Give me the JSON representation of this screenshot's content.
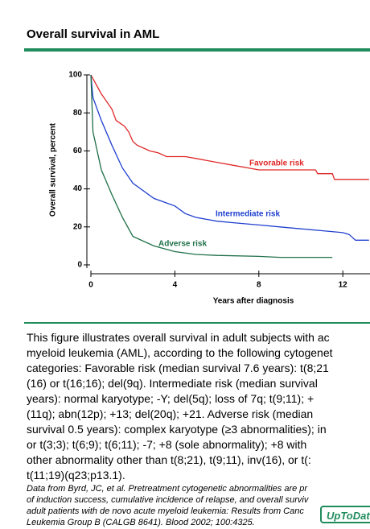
{
  "header": {
    "title": "Overall survival in AML"
  },
  "chart_data": {
    "type": "line",
    "xlabel": "Years after diagnosis",
    "ylabel": "Overall survival, percent",
    "xlim": [
      0,
      13.25
    ],
    "ylim": [
      0,
      100
    ],
    "xticks": [
      0,
      4,
      8,
      12
    ],
    "yticks": [
      0,
      20,
      40,
      60,
      80,
      100
    ],
    "series": [
      {
        "name": "Favorable risk",
        "color": "#e02828",
        "x": [
          0,
          0.2,
          0.5,
          1,
          1.2,
          1.6,
          1.8,
          2,
          2.2,
          2.8,
          3.2,
          3.6,
          4.5,
          5,
          6,
          7,
          7.5,
          8,
          9,
          10,
          10.7,
          10.8,
          11.5,
          11.6,
          13.25
        ],
        "values": [
          100,
          96,
          90,
          82,
          76,
          73,
          70,
          65,
          63,
          60,
          59,
          57,
          57,
          56,
          54,
          52,
          51,
          50,
          50,
          50,
          50,
          48,
          48,
          45,
          45
        ]
      },
      {
        "name": "Intermediate risk",
        "color": "#2040d0",
        "x": [
          0,
          0.1,
          0.5,
          1,
          1.5,
          2,
          3,
          4,
          4.5,
          5,
          6,
          7,
          8,
          9,
          10,
          11,
          12,
          12.3,
          12.6,
          13.25
        ],
        "values": [
          100,
          88,
          76,
          63,
          51,
          43,
          35,
          31,
          27,
          25,
          23,
          22,
          21,
          20,
          19,
          18,
          17,
          16,
          13,
          13
        ]
      },
      {
        "name": "Adverse risk",
        "color": "#1f7048",
        "x": [
          0,
          0.1,
          0.5,
          1,
          1.5,
          2,
          3,
          4,
          5,
          6,
          8,
          9,
          11.5
        ],
        "values": [
          100,
          70,
          50,
          37,
          25,
          15,
          10,
          7,
          5.5,
          5,
          4.5,
          4,
          4
        ]
      }
    ]
  },
  "caption": {
    "lines": [
      "This figure illustrates overall survival in adult subjects with ac",
      "myeloid leukemia (AML), according to the following cytogenet",
      "categories: Favorable risk (median survival 7.6 years): t(8;21",
      "(16) or t(16;16); del(9q). Intermediate risk (median survival",
      "years): normal karyotype; -Y; del(5q); loss of 7q; t(9;11); +",
      "(11q); abn(12p); +13; del(20q); +21. Adverse risk (median",
      "survival 0.5 years): complex karyotype (≥3 abnormalities); in",
      "or t(3;3); t(6;9); t(6;11); -7; +8 (sole abnormality); +8 with",
      "other abnormality other than t(8;21), t(9;11), inv(16), or t(:",
      "t(11;19)(q23;p13.1)."
    ],
    "citation": [
      "Data from Byrd, JC, et al. Pretreatment cytogenetic abnormalities are pr",
      "of induction success, cumulative incidence of relapse, and overall surviv",
      "adult patients with de novo acute myeloid leukemia: Results from Canc",
      "Leukemia Group B (CALGB 8641). Blood 2002; 100:4325."
    ]
  },
  "logo": "UpToDate"
}
